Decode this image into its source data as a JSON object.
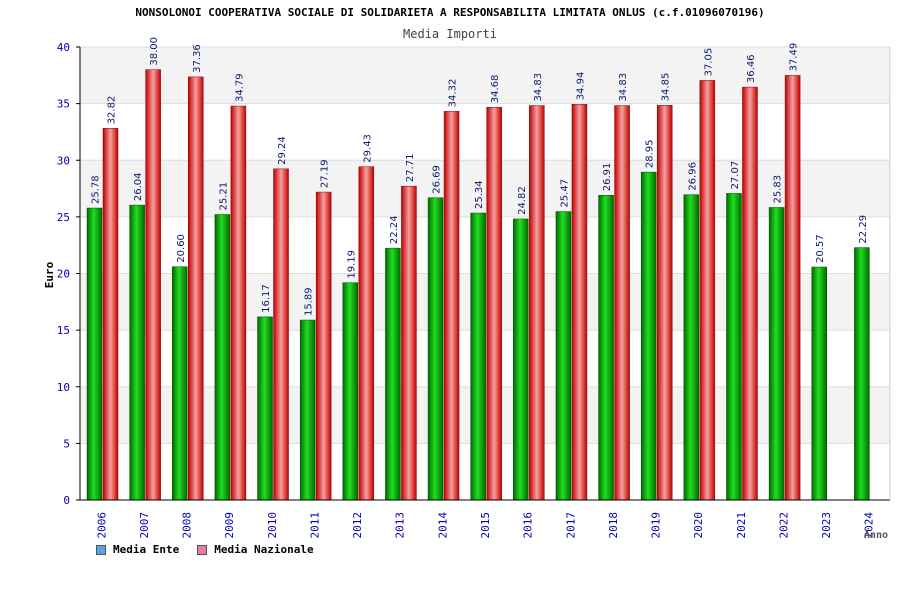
{
  "chart_data": {
    "type": "bar",
    "title": "NONSOLONOI COOPERATIVA SOCIALE DI SOLIDARIETA A RESPONSABILITA LIMITATA ONLUS (c.f.01096070196)",
    "subtitle": "Media Importi",
    "xlabel": "Anno",
    "ylabel": "Euro",
    "ylim": [
      0,
      40
    ],
    "yticks": [
      "0",
      "5",
      "10",
      "15",
      "20",
      "25",
      "30",
      "35",
      "40"
    ],
    "categories": [
      "2006",
      "2007",
      "2008",
      "2009",
      "2010",
      "2011",
      "2012",
      "2013",
      "2014",
      "2015",
      "2016",
      "2017",
      "2018",
      "2019",
      "2020",
      "2021",
      "2022",
      "2023",
      "2024"
    ],
    "series": [
      {
        "name": "Media Ente",
        "color": "#00a000",
        "legend_color": "#5aa0e6",
        "values": [
          25.78,
          26.04,
          20.6,
          25.21,
          16.17,
          15.89,
          19.19,
          22.24,
          26.69,
          25.34,
          24.82,
          25.47,
          26.91,
          28.95,
          26.96,
          27.07,
          25.83,
          20.57,
          22.29
        ],
        "labels": [
          "25.78",
          "26.04",
          "20.60",
          "25.21",
          "16.17",
          "15.89",
          "19.19",
          "22.24",
          "26.69",
          "25.34",
          "24.82",
          "25.47",
          "26.91",
          "28.95",
          "26.96",
          "27.07",
          "25.83",
          "20.57",
          "22.29"
        ]
      },
      {
        "name": "Media Nazionale",
        "color": "#e01010",
        "legend_color": "#e67aa8",
        "values": [
          32.82,
          38.0,
          37.36,
          34.79,
          29.24,
          27.19,
          29.43,
          27.71,
          34.32,
          34.68,
          34.83,
          34.94,
          34.83,
          34.85,
          37.05,
          36.46,
          37.49,
          null,
          null
        ],
        "labels": [
          "32.82",
          "38.00",
          "37.36",
          "34.79",
          "29.24",
          "27.19",
          "29.43",
          "27.71",
          "34.32",
          "34.68",
          "34.83",
          "34.94",
          "34.83",
          "34.85",
          "37.05",
          "36.46",
          "37.49",
          "",
          ""
        ]
      }
    ],
    "grid": true,
    "legend_position": "bottom-left"
  }
}
